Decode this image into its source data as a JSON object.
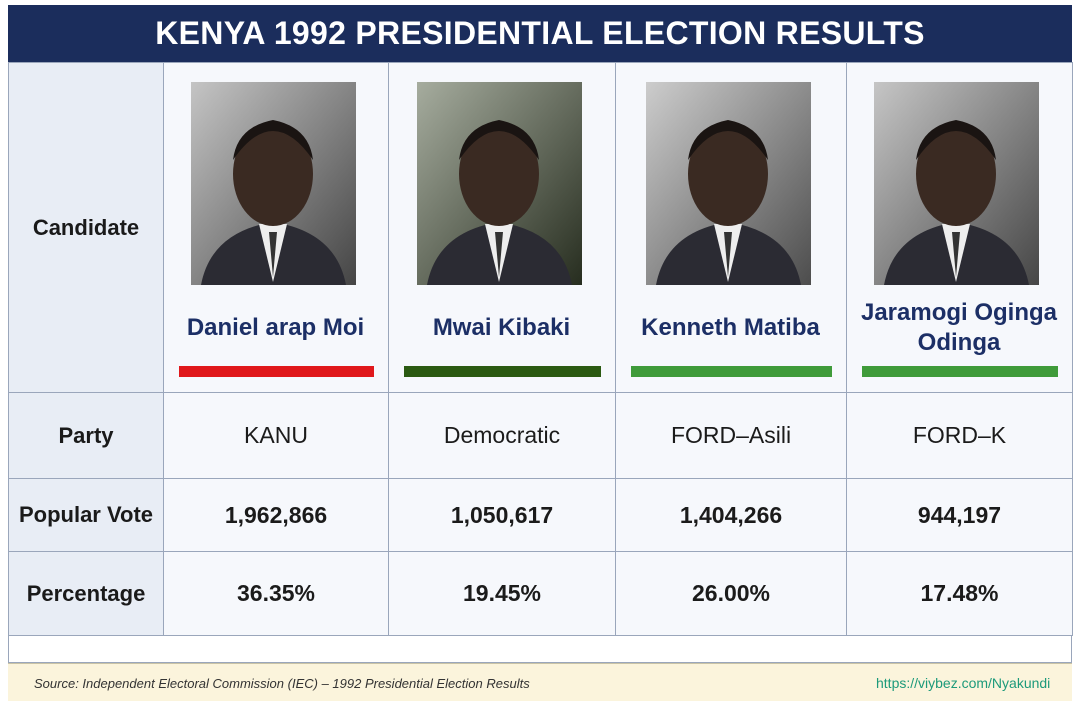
{
  "title": "KENYA 1992 PRESIDENTIAL ELECTION RESULTS",
  "row_labels": [
    "Candidate",
    "Party",
    "Popular Vote",
    "Percentage"
  ],
  "candidates": [
    {
      "name": "Daniel arap Moi",
      "color": "#e0181b",
      "party": "KANU",
      "popular_vote": "1,962,866",
      "percentage": "36.35%"
    },
    {
      "name": "Mwai Kibaki",
      "color": "#2b5a12",
      "party": "Democratic",
      "popular_vote": "1,050,617",
      "percentage": "19.45%"
    },
    {
      "name": "Kenneth Matiba",
      "color": "#3f9b3a",
      "party": "FORD–Asili",
      "popular_vote": "1,404,266",
      "percentage": "26.00%"
    },
    {
      "name": "Jaramogi Oginga Odinga",
      "color": "#3f9b3a",
      "party": "FORD–K",
      "popular_vote": "944,197",
      "percentage": "17.48%"
    }
  ],
  "source": "Source: Independent Electoral Commission (IEC) – 1992 Presidential Election Results",
  "watermark": "https://viybez.com/Nyakundi"
}
